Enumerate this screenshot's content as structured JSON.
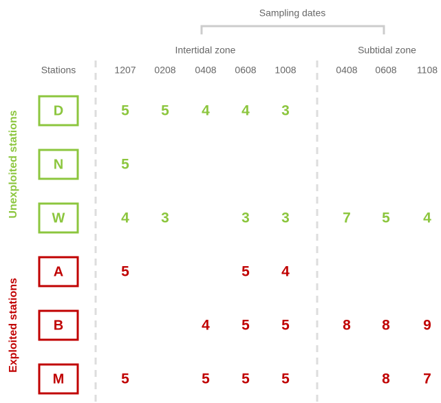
{
  "header": {
    "title": "Sampling dates",
    "zones": [
      {
        "label": "Intertidal zone",
        "columns": [
          0,
          1,
          2,
          3,
          4
        ]
      },
      {
        "label": "Subtidal zone",
        "columns": [
          5,
          6,
          7
        ]
      }
    ],
    "stations_label": "Stations",
    "dates": [
      "1207",
      "0208",
      "0408",
      "0608",
      "1008",
      "0408",
      "0608",
      "1108"
    ]
  },
  "groups": [
    {
      "label": "Unexploited stations",
      "color": "#8cc63e",
      "rows": [
        {
          "station": "D",
          "values": [
            5,
            5,
            4,
            4,
            3,
            null,
            null,
            null
          ]
        },
        {
          "station": "N",
          "values": [
            5,
            null,
            null,
            null,
            null,
            null,
            null,
            null
          ]
        },
        {
          "station": "W",
          "values": [
            4,
            3,
            null,
            3,
            3,
            7,
            5,
            4
          ]
        }
      ]
    },
    {
      "label": "Exploited stations",
      "color": "#c00000",
      "rows": [
        {
          "station": "A",
          "values": [
            5,
            null,
            null,
            5,
            4,
            null,
            null,
            null
          ]
        },
        {
          "station": "B",
          "values": [
            null,
            null,
            4,
            5,
            5,
            8,
            8,
            9
          ]
        },
        {
          "station": "M",
          "values": [
            5,
            null,
            5,
            5,
            5,
            null,
            8,
            7
          ]
        }
      ]
    }
  ]
}
